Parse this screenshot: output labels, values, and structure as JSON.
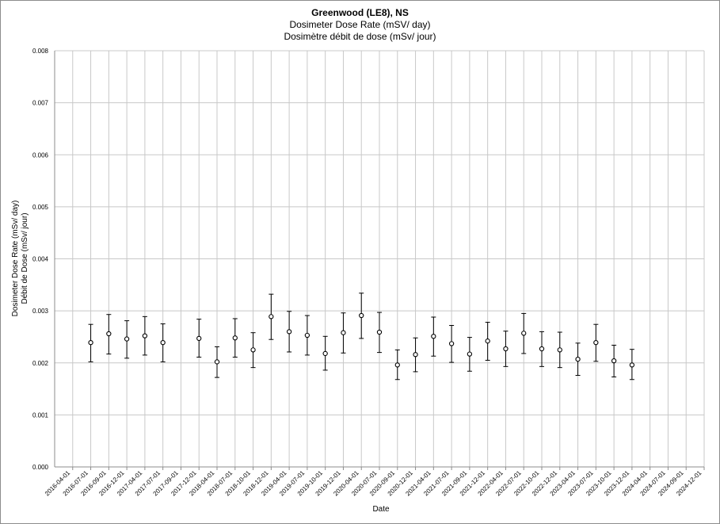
{
  "title": "Greenwood (LE8), NS",
  "subtitle_en": "Dosimeter Dose Rate (mSV/ day)",
  "subtitle_fr": "Dosimètre débit de dose (mSv/ jour)",
  "chart_data": {
    "type": "scatter",
    "title": "Greenwood (LE8), NS",
    "subtitle": [
      "Dosimeter Dose Rate (mSV/ day)",
      "Dosimètre débit de dose (mSv/ jour)"
    ],
    "xlabel": "Date",
    "ylabel": [
      "Dosimeter Dose Rate (mSv/ day)",
      "Débit de Dose (mSv/ jour)"
    ],
    "ylim": [
      0,
      0.008
    ],
    "y_ticks": [
      "0.000",
      "0.001",
      "0.002",
      "0.003",
      "0.004",
      "0.005",
      "0.006",
      "0.007",
      "0.008"
    ],
    "x_ticks": [
      "2016-04-01",
      "2016-07-01",
      "2016-09-01",
      "2016-12-01",
      "2017-04-01",
      "2017-07-01",
      "2017-09-01",
      "2017-12-01",
      "2018-04-01",
      "2018-07-01",
      "2018-10-01",
      "2018-12-01",
      "2019-04-01",
      "2019-07-01",
      "2019-10-01",
      "2019-12-01",
      "2020-04-01",
      "2020-07-01",
      "2020-09-01",
      "2020-12-01",
      "2021-04-01",
      "2021-07-01",
      "2021-09-01",
      "2021-12-01",
      "2022-04-01",
      "2022-07-01",
      "2022-10-01",
      "2022-12-01",
      "2023-04-01",
      "2023-07-01",
      "2023-10-01",
      "2023-12-01",
      "2024-04-01",
      "2024-07-01",
      "2024-09-01",
      "2024-12-01"
    ],
    "grid": true,
    "legend": "none",
    "marker_color": "#000000",
    "grid_color": "#c8c8c8",
    "series": [
      {
        "points": [
          {
            "x": "2016-07-01",
            "y": 0.00239,
            "low": 0.00202,
            "high": 0.00274
          },
          {
            "x": "2016-09-01",
            "y": 0.00256,
            "low": 0.00217,
            "high": 0.00293
          },
          {
            "x": "2016-12-01",
            "y": 0.00246,
            "low": 0.00209,
            "high": 0.00281
          },
          {
            "x": "2017-04-01",
            "y": 0.00252,
            "low": 0.00215,
            "high": 0.00289
          },
          {
            "x": "2017-07-01",
            "y": 0.00239,
            "low": 0.00202,
            "high": 0.00275
          },
          {
            "x": "2017-12-01",
            "y": 0.00247,
            "low": 0.00211,
            "high": 0.00284
          },
          {
            "x": "2018-04-01",
            "y": 0.00202,
            "low": 0.00172,
            "high": 0.00231
          },
          {
            "x": "2018-07-01",
            "y": 0.00248,
            "low": 0.00211,
            "high": 0.00285
          },
          {
            "x": "2018-10-01",
            "y": 0.00225,
            "low": 0.00191,
            "high": 0.00258
          },
          {
            "x": "2018-12-01",
            "y": 0.00289,
            "low": 0.00245,
            "high": 0.00332
          },
          {
            "x": "2019-04-01",
            "y": 0.0026,
            "low": 0.00221,
            "high": 0.00299
          },
          {
            "x": "2019-07-01",
            "y": 0.00253,
            "low": 0.00215,
            "high": 0.00291
          },
          {
            "x": "2019-10-01",
            "y": 0.00218,
            "low": 0.00186,
            "high": 0.00251
          },
          {
            "x": "2019-12-01",
            "y": 0.00258,
            "low": 0.00219,
            "high": 0.00296
          },
          {
            "x": "2020-04-01",
            "y": 0.00291,
            "low": 0.00247,
            "high": 0.00334
          },
          {
            "x": "2020-07-01",
            "y": 0.00259,
            "low": 0.0022,
            "high": 0.00297
          },
          {
            "x": "2020-09-01",
            "y": 0.00196,
            "low": 0.00168,
            "high": 0.00225
          },
          {
            "x": "2020-12-01",
            "y": 0.00216,
            "low": 0.00183,
            "high": 0.00248
          },
          {
            "x": "2021-04-01",
            "y": 0.00251,
            "low": 0.00213,
            "high": 0.00288
          },
          {
            "x": "2021-07-01",
            "y": 0.00237,
            "low": 0.00201,
            "high": 0.00272
          },
          {
            "x": "2021-09-01",
            "y": 0.00217,
            "low": 0.00184,
            "high": 0.00249
          },
          {
            "x": "2021-12-01",
            "y": 0.00242,
            "low": 0.00205,
            "high": 0.00278
          },
          {
            "x": "2022-04-01",
            "y": 0.00227,
            "low": 0.00193,
            "high": 0.00261
          },
          {
            "x": "2022-07-01",
            "y": 0.00257,
            "low": 0.00218,
            "high": 0.00295
          },
          {
            "x": "2022-10-01",
            "y": 0.00227,
            "low": 0.00193,
            "high": 0.0026
          },
          {
            "x": "2022-12-01",
            "y": 0.00225,
            "low": 0.00191,
            "high": 0.00259
          },
          {
            "x": "2023-04-01",
            "y": 0.00207,
            "low": 0.00176,
            "high": 0.00238
          },
          {
            "x": "2023-07-01",
            "y": 0.00239,
            "low": 0.00203,
            "high": 0.00274
          },
          {
            "x": "2023-10-01",
            "y": 0.00204,
            "low": 0.00173,
            "high": 0.00234
          },
          {
            "x": "2023-12-01",
            "y": 0.00196,
            "low": 0.00168,
            "high": 0.00226
          }
        ]
      }
    ]
  }
}
